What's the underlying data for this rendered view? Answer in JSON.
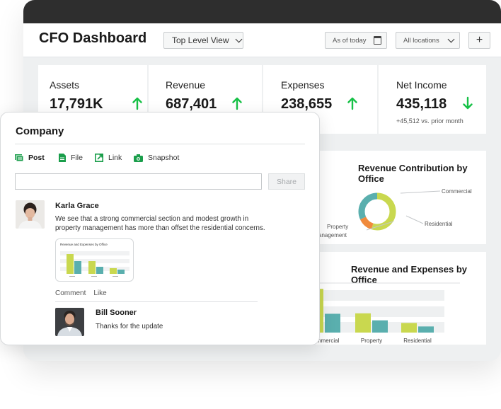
{
  "header": {
    "title": "CFO Dashboard",
    "view_select": "Top Level View",
    "date_filter": "As of today",
    "location_filter": "All locations",
    "add_label": "+"
  },
  "kpis": [
    {
      "label": "Assets",
      "value": "17,791K",
      "trend": "up",
      "sub": ""
    },
    {
      "label": "Revenue",
      "value": "687,401",
      "trend": "up",
      "sub": ""
    },
    {
      "label": "Expenses",
      "value": "238,655",
      "trend": "up",
      "sub": ""
    },
    {
      "label": "Net Income",
      "value": "435,118",
      "trend": "down",
      "sub": "+45,512 vs. prior month"
    }
  ],
  "colors": {
    "accent_green": "#17c147",
    "lime": "#c9d84f",
    "teal": "#5aafae",
    "orange": "#f08a3c"
  },
  "revenue_contribution": {
    "title": "Revenue Contribution by Office",
    "chart_data": {
      "type": "pie",
      "categories": [
        "Commercial",
        "Residential",
        "Property management"
      ],
      "values": [
        55,
        13,
        32
      ],
      "legend": "callout-labels"
    },
    "labels": {
      "commercial": "Commercial",
      "residential": "Residential",
      "property": "Property",
      "management": "anagement"
    }
  },
  "revenue_expenses": {
    "title": "Revenue and Expenses by Office",
    "chart_data": {
      "type": "bar",
      "categories": [
        "Commercial",
        "Property",
        "Residential"
      ],
      "series": [
        {
          "values": [
            100,
            44,
            22
          ]
        },
        {
          "values": [
            43,
            28,
            14
          ]
        }
      ],
      "ylim": [
        0,
        110
      ],
      "grid": true
    }
  },
  "company": {
    "title": "Company",
    "tabs": [
      {
        "label": "Post",
        "icon": "post-icon"
      },
      {
        "label": "File",
        "icon": "file-icon"
      },
      {
        "label": "Link",
        "icon": "link-icon"
      },
      {
        "label": "Snapshot",
        "icon": "camera-icon"
      }
    ],
    "input_value": "",
    "share_label": "Share",
    "post": {
      "author": "Karla Grace",
      "text_line1": "We see that a strong commercial section and modest growth in",
      "text_line2": "property management has more than offset the residential concerns.",
      "attachment_title": "Revenue and Expenses by Office",
      "comment_label": "Comment",
      "like_label": "Like"
    },
    "reply": {
      "author": "Bill Sooner",
      "text": "Thanks for the update"
    }
  }
}
